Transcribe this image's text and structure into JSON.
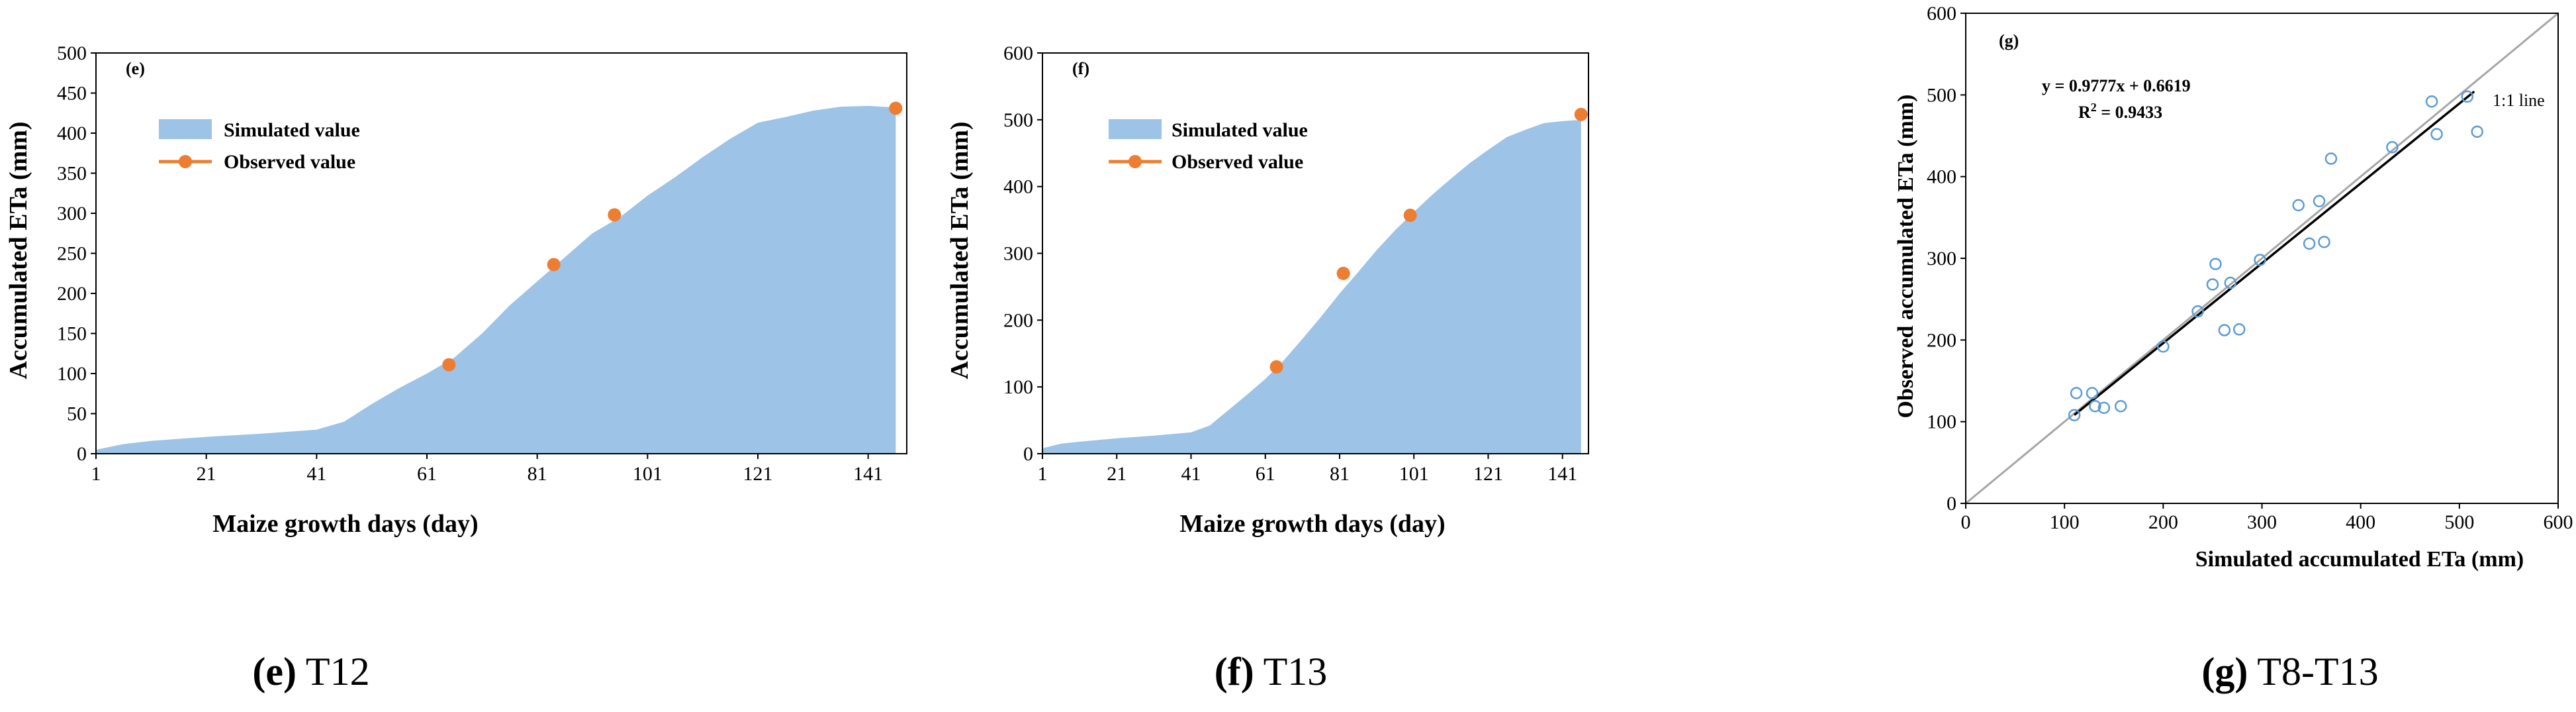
{
  "colors": {
    "area": "#9dc3e6",
    "observed": "#ed7d31",
    "scatter_marker": "#5b9bd5",
    "fit_line": "#000000",
    "identity_line": "#a6a6a6"
  },
  "chart_data": [
    {
      "type": "area",
      "panel": "e",
      "tag": "(e)",
      "caption_letter": "(e)",
      "caption_text": "T12",
      "xlabel": "Maize growth days (day)",
      "ylabel": "Accumulated ETa (mm)",
      "xlim": [
        1,
        148
      ],
      "ylim": [
        0,
        500
      ],
      "xticks": [
        1,
        21,
        41,
        61,
        81,
        101,
        121,
        141
      ],
      "yticks": [
        0,
        50,
        100,
        150,
        200,
        250,
        300,
        350,
        400,
        450,
        500
      ],
      "legend": [
        "Simulated value",
        "Observed value"
      ],
      "simulated": {
        "name": "Simulated value",
        "x": [
          1,
          6,
          11,
          21,
          31,
          41,
          46,
          51,
          56,
          61,
          66,
          71,
          76,
          81,
          86,
          91,
          96,
          101,
          106,
          111,
          116,
          121,
          126,
          131,
          136,
          141,
          146
        ],
        "y": [
          5,
          12,
          16,
          21,
          25,
          30,
          40,
          62,
          82,
          100,
          120,
          150,
          185,
          215,
          245,
          275,
          295,
          322,
          345,
          370,
          393,
          413,
          420,
          428,
          433,
          434,
          432
        ]
      },
      "observed": {
        "name": "Observed value",
        "x": [
          65,
          84,
          95,
          146
        ],
        "y": [
          111,
          236,
          298,
          431
        ]
      }
    },
    {
      "type": "area",
      "panel": "f",
      "tag": "(f)",
      "caption_letter": "(f)",
      "caption_text": "T13",
      "xlabel": "Maize growth days (day)",
      "ylabel": "Accumulated ETa (mm)",
      "xlim": [
        1,
        148
      ],
      "ylim": [
        0,
        600
      ],
      "xticks": [
        1,
        21,
        41,
        61,
        81,
        101,
        121,
        141
      ],
      "yticks": [
        0,
        100,
        200,
        300,
        400,
        500,
        600
      ],
      "legend": [
        "Simulated value",
        "Observed value"
      ],
      "simulated": {
        "name": "Simulated value",
        "x": [
          1,
          6,
          11,
          21,
          31,
          41,
          46,
          51,
          56,
          61,
          66,
          71,
          76,
          81,
          86,
          91,
          96,
          101,
          106,
          111,
          116,
          121,
          126,
          131,
          136,
          141,
          146
        ],
        "y": [
          8,
          15,
          18,
          23,
          27,
          32,
          42,
          65,
          88,
          112,
          140,
          172,
          205,
          240,
          272,
          305,
          335,
          362,
          388,
          412,
          435,
          455,
          474,
          485,
          495,
          498,
          500
        ]
      },
      "observed": {
        "name": "Observed value",
        "x": [
          64,
          82,
          100,
          146
        ],
        "y": [
          130,
          270,
          357,
          508
        ]
      }
    },
    {
      "type": "scatter",
      "panel": "g",
      "tag": "(g)",
      "caption_letter": "(g)",
      "caption_text": "T8-T13",
      "xlabel": "Simulated accumulated ETa (mm)",
      "ylabel": "Observed accumulated ETa (mm)",
      "xlim": [
        0,
        600
      ],
      "ylim": [
        0,
        600
      ],
      "xticks": [
        0,
        100,
        200,
        300,
        400,
        500,
        600
      ],
      "yticks": [
        0,
        100,
        200,
        300,
        400,
        500,
        600
      ],
      "equation": "y = 0.9777x + 0.6619",
      "r2_label": "R",
      "r2_sup": "2",
      "r2_value": " = 0.9433",
      "identity_label": "1:1 line",
      "fit": {
        "slope": 0.9777,
        "intercept": 0.6619,
        "x_range": [
          110,
          515
        ]
      },
      "points": {
        "x": [
          110,
          112,
          128,
          131,
          140,
          157,
          200,
          235,
          250,
          253,
          262,
          268,
          277,
          298,
          337,
          348,
          358,
          363,
          370,
          432,
          472,
          477,
          508,
          518
        ],
        "y": [
          108,
          135,
          135,
          119,
          117,
          119,
          192,
          235,
          268,
          293,
          212,
          270,
          213,
          298,
          365,
          318,
          370,
          320,
          422,
          436,
          492,
          452,
          498,
          455
        ]
      }
    }
  ]
}
